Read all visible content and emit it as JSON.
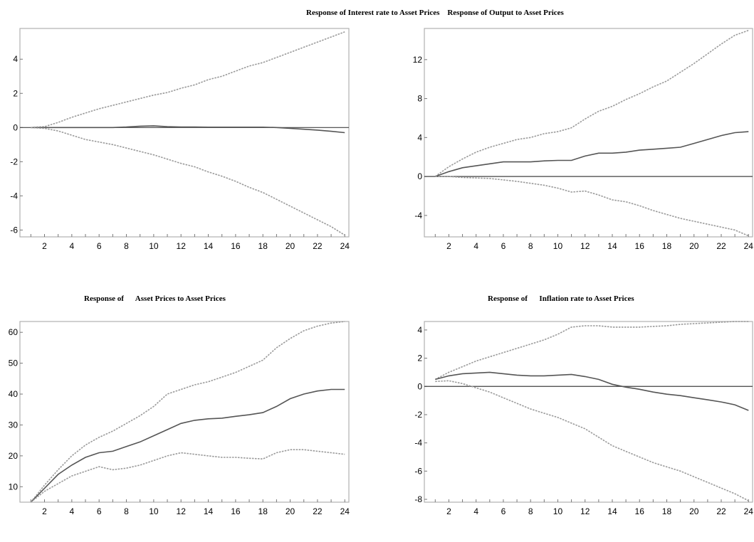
{
  "titles": {
    "top_combined": "Response of Interest rate to Asset Prices    Response of Output to Asset Prices",
    "bottom_left": "Response of      Asset Prices to Asset Prices",
    "bottom_right": "Response of      Inflation rate to Asset Prices"
  },
  "colors": {
    "estimate": "#555555",
    "band": "#9a9a9a",
    "axis": "#b0b0b0",
    "zero": "#404040"
  },
  "chart_data": [
    {
      "type": "line",
      "panel": "top-left",
      "title": "Response of Interest rate to Asset Prices",
      "x": [
        1,
        2,
        3,
        4,
        5,
        6,
        7,
        8,
        9,
        10,
        11,
        12,
        13,
        14,
        15,
        16,
        17,
        18,
        19,
        20,
        21,
        22,
        23,
        24
      ],
      "xticks": [
        2,
        4,
        6,
        8,
        10,
        12,
        14,
        16,
        18,
        20,
        22,
        24
      ],
      "yticks": [
        -6,
        -4,
        -2,
        0,
        2,
        4
      ],
      "xlim": [
        0.2,
        24.3
      ],
      "ylim": [
        -6.4,
        5.8
      ],
      "zero_line": true,
      "series": [
        {
          "role": "upper",
          "values": [
            0,
            0.05,
            0.3,
            0.6,
            0.85,
            1.1,
            1.3,
            1.5,
            1.7,
            1.9,
            2.05,
            2.3,
            2.5,
            2.8,
            3.0,
            3.3,
            3.6,
            3.8,
            4.1,
            4.4,
            4.7,
            5.0,
            5.3,
            5.6
          ]
        },
        {
          "role": "estimate",
          "values": [
            0,
            0,
            0,
            0,
            0,
            0,
            0,
            0.03,
            0.08,
            0.1,
            0.05,
            0.03,
            0.03,
            0.02,
            0.02,
            0.02,
            0.02,
            0.02,
            0,
            -0.05,
            -0.1,
            -0.15,
            -0.22,
            -0.3
          ]
        },
        {
          "role": "lower",
          "values": [
            0,
            -0.05,
            -0.2,
            -0.45,
            -0.7,
            -0.85,
            -1.0,
            -1.2,
            -1.4,
            -1.6,
            -1.85,
            -2.1,
            -2.3,
            -2.6,
            -2.85,
            -3.15,
            -3.5,
            -3.8,
            -4.2,
            -4.6,
            -5.0,
            -5.4,
            -5.8,
            -6.3
          ]
        }
      ]
    },
    {
      "type": "line",
      "panel": "top-right",
      "title": "Response of Output to Asset Prices",
      "x": [
        1,
        2,
        3,
        4,
        5,
        6,
        7,
        8,
        9,
        10,
        11,
        12,
        13,
        14,
        15,
        16,
        17,
        18,
        19,
        20,
        21,
        22,
        23,
        24
      ],
      "xticks": [
        2,
        4,
        6,
        8,
        10,
        12,
        14,
        16,
        18,
        20,
        22,
        24
      ],
      "yticks": [
        -4,
        0,
        4,
        8,
        12
      ],
      "xlim": [
        0.2,
        24.3
      ],
      "ylim": [
        -6.2,
        15.2
      ],
      "zero_line": true,
      "series": [
        {
          "role": "upper",
          "values": [
            0,
            1.0,
            1.8,
            2.5,
            3.0,
            3.4,
            3.8,
            4.0,
            4.4,
            4.6,
            5.0,
            5.9,
            6.7,
            7.2,
            7.9,
            8.5,
            9.2,
            9.8,
            10.7,
            11.6,
            12.6,
            13.6,
            14.5,
            15.0
          ]
        },
        {
          "role": "estimate",
          "values": [
            0,
            0.5,
            0.9,
            1.1,
            1.3,
            1.5,
            1.5,
            1.5,
            1.6,
            1.65,
            1.65,
            2.1,
            2.4,
            2.4,
            2.5,
            2.7,
            2.8,
            2.9,
            3.0,
            3.4,
            3.8,
            4.2,
            4.5,
            4.6
          ]
        },
        {
          "role": "lower",
          "values": [
            0,
            0,
            -0.1,
            -0.15,
            -0.2,
            -0.35,
            -0.5,
            -0.7,
            -0.9,
            -1.2,
            -1.6,
            -1.5,
            -1.9,
            -2.4,
            -2.6,
            -3.0,
            -3.5,
            -3.9,
            -4.3,
            -4.6,
            -4.9,
            -5.2,
            -5.5,
            -6.1
          ]
        }
      ]
    },
    {
      "type": "line",
      "panel": "bottom-left",
      "title": "Response of      Asset Prices to Asset Prices",
      "x": [
        1,
        2,
        3,
        4,
        5,
        6,
        7,
        8,
        9,
        10,
        11,
        12,
        13,
        14,
        15,
        16,
        17,
        18,
        19,
        20,
        21,
        22,
        23,
        24
      ],
      "xticks": [
        2,
        4,
        6,
        8,
        10,
        12,
        14,
        16,
        18,
        20,
        22,
        24
      ],
      "yticks": [
        10,
        20,
        30,
        40,
        50,
        60
      ],
      "xlim": [
        0.2,
        24.3
      ],
      "ylim": [
        5,
        63.5
      ],
      "zero_line": false,
      "series": [
        {
          "role": "upper",
          "values": [
            5,
            10.5,
            15.5,
            20,
            23.5,
            26,
            28,
            30.5,
            33,
            36,
            40,
            41.5,
            43,
            44,
            45.5,
            47,
            49,
            51,
            55,
            58,
            60.5,
            62,
            63,
            63.5
          ]
        },
        {
          "role": "estimate",
          "values": [
            5,
            9.5,
            14,
            17,
            19.5,
            21,
            21.5,
            23,
            24.5,
            26.5,
            28.5,
            30.5,
            31.5,
            32,
            32.2,
            32.8,
            33.3,
            34,
            36,
            38.5,
            40,
            41,
            41.5,
            41.5
          ]
        },
        {
          "role": "lower",
          "values": [
            5,
            8.5,
            11,
            13.5,
            15,
            16.5,
            15.5,
            16,
            17,
            18.5,
            20,
            21,
            20.5,
            20,
            19.5,
            19.5,
            19.2,
            19,
            21,
            22,
            22,
            21.5,
            21,
            20.5
          ]
        }
      ]
    },
    {
      "type": "line",
      "panel": "bottom-right",
      "title": "Response of      Inflation rate to Asset Prices",
      "x": [
        1,
        2,
        3,
        4,
        5,
        6,
        7,
        8,
        9,
        10,
        11,
        12,
        13,
        14,
        15,
        16,
        17,
        18,
        19,
        20,
        21,
        22,
        23,
        24
      ],
      "xticks": [
        2,
        4,
        6,
        8,
        10,
        12,
        14,
        16,
        18,
        20,
        22,
        24
      ],
      "yticks": [
        -8,
        -6,
        -4,
        -2,
        0,
        2,
        4
      ],
      "xlim": [
        0.2,
        24.3
      ],
      "ylim": [
        -8.2,
        4.6
      ],
      "zero_line": true,
      "series": [
        {
          "role": "upper",
          "values": [
            0.5,
            1.0,
            1.4,
            1.8,
            2.1,
            2.4,
            2.7,
            3.0,
            3.3,
            3.7,
            4.2,
            4.3,
            4.3,
            4.2,
            4.2,
            4.2,
            4.25,
            4.3,
            4.4,
            4.45,
            4.5,
            4.55,
            4.6,
            4.6
          ]
        },
        {
          "role": "estimate",
          "values": [
            0.5,
            0.75,
            0.9,
            0.95,
            1.0,
            0.9,
            0.8,
            0.75,
            0.75,
            0.8,
            0.85,
            0.7,
            0.5,
            0.15,
            -0.05,
            -0.2,
            -0.4,
            -0.55,
            -0.65,
            -0.8,
            -0.95,
            -1.1,
            -1.3,
            -1.7
          ]
        },
        {
          "role": "lower",
          "values": [
            0.35,
            0.4,
            0.2,
            -0.1,
            -0.4,
            -0.8,
            -1.2,
            -1.6,
            -1.9,
            -2.2,
            -2.6,
            -3.0,
            -3.6,
            -4.2,
            -4.6,
            -5.0,
            -5.4,
            -5.7,
            -6.0,
            -6.4,
            -6.8,
            -7.2,
            -7.6,
            -8.1
          ]
        }
      ]
    }
  ]
}
